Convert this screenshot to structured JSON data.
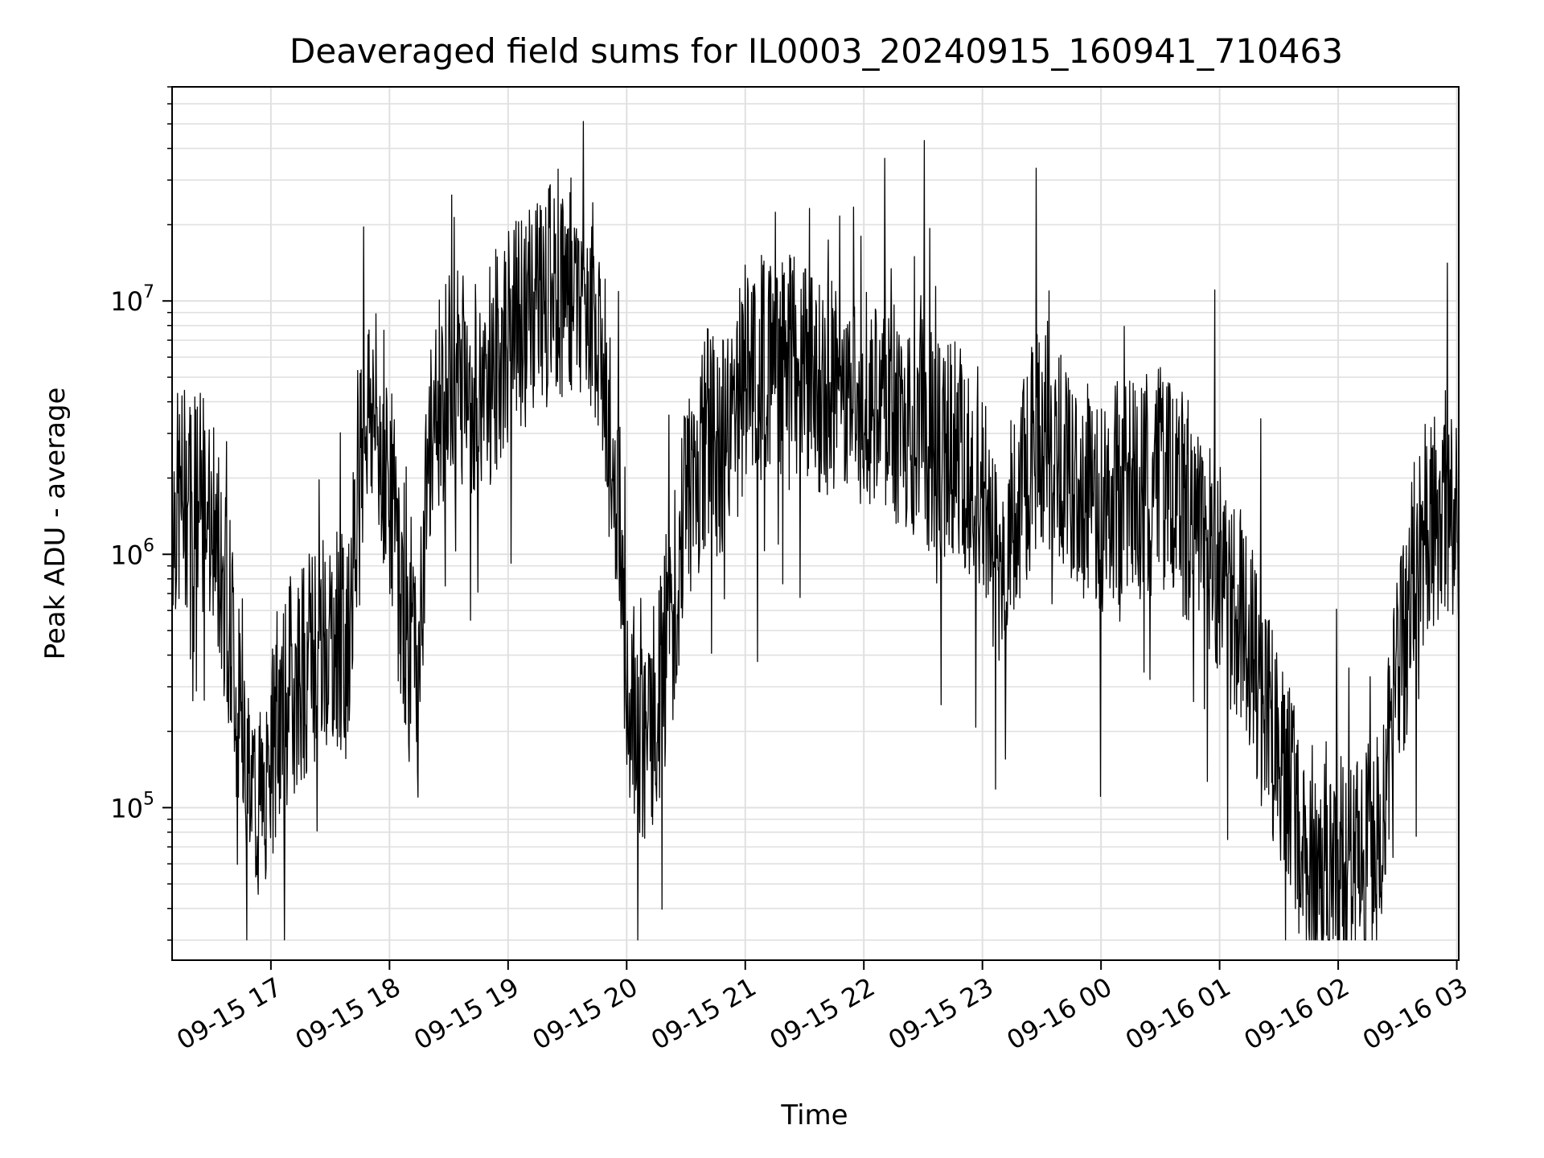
{
  "chart_data": {
    "type": "line",
    "title": "Deaveraged field sums for IL0003_20240915_160941_710463",
    "xlabel": "Time",
    "ylabel": "Peak ADU - average",
    "yscale": "log",
    "grid": true,
    "line_color": "#000000",
    "grid_color": "#e0e0e0",
    "xlim": [
      "2024-09-15 16:10",
      "2024-09-16 03:01"
    ],
    "ylim": [
      25000,
      70000000
    ],
    "x_ticks": [
      {
        "value": "2024-09-15 17:00",
        "label": "09-15 17"
      },
      {
        "value": "2024-09-15 18:00",
        "label": "09-15 18"
      },
      {
        "value": "2024-09-15 19:00",
        "label": "09-15 19"
      },
      {
        "value": "2024-09-15 20:00",
        "label": "09-15 20"
      },
      {
        "value": "2024-09-15 21:00",
        "label": "09-15 21"
      },
      {
        "value": "2024-09-15 22:00",
        "label": "09-15 22"
      },
      {
        "value": "2024-09-15 23:00",
        "label": "09-15 23"
      },
      {
        "value": "2024-09-16 00:00",
        "label": "09-16 00"
      },
      {
        "value": "2024-09-16 01:00",
        "label": "09-16 01"
      },
      {
        "value": "2024-09-16 02:00",
        "label": "09-16 02"
      },
      {
        "value": "2024-09-16 03:00",
        "label": "09-16 03"
      }
    ],
    "y_ticks": [
      {
        "value": 100000,
        "base": "10",
        "exp": "5"
      },
      {
        "value": 1000000,
        "base": "10",
        "exp": "6"
      },
      {
        "value": 10000000,
        "base": "10",
        "exp": "7"
      }
    ],
    "series": [
      {
        "x": [
          "2024-09-15 16:10",
          "2024-09-15 16:20",
          "2024-09-15 16:30",
          "2024-09-15 16:35",
          "2024-09-15 16:40",
          "2024-09-15 16:45",
          "2024-09-15 16:50",
          "2024-09-15 16:55",
          "2024-09-15 17:00",
          "2024-09-15 17:10",
          "2024-09-15 17:20",
          "2024-09-15 17:30",
          "2024-09-15 17:40",
          "2024-09-15 17:45",
          "2024-09-15 17:50",
          "2024-09-15 18:00",
          "2024-09-15 18:05",
          "2024-09-15 18:10",
          "2024-09-15 18:15",
          "2024-09-15 18:20",
          "2024-09-15 18:30",
          "2024-09-15 18:40",
          "2024-09-15 18:50",
          "2024-09-15 19:00",
          "2024-09-15 19:15",
          "2024-09-15 19:30",
          "2024-09-15 19:45",
          "2024-09-15 19:50",
          "2024-09-15 19:55",
          "2024-09-15 20:00",
          "2024-09-15 20:05",
          "2024-09-15 20:10",
          "2024-09-15 20:15",
          "2024-09-15 20:20",
          "2024-09-15 20:30",
          "2024-09-15 20:40",
          "2024-09-15 20:50",
          "2024-09-15 21:00",
          "2024-09-15 21:15",
          "2024-09-15 21:30",
          "2024-09-15 21:45",
          "2024-09-15 22:00",
          "2024-09-15 22:15",
          "2024-09-15 22:30",
          "2024-09-15 22:45",
          "2024-09-15 23:00",
          "2024-09-15 23:05",
          "2024-09-15 23:10",
          "2024-09-15 23:15",
          "2024-09-15 23:30",
          "2024-09-15 23:45",
          "2024-09-16 00:00",
          "2024-09-16 00:15",
          "2024-09-16 00:30",
          "2024-09-16 00:45",
          "2024-09-16 01:00",
          "2024-09-16 01:10",
          "2024-09-16 01:20",
          "2024-09-16 01:30",
          "2024-09-16 01:40",
          "2024-09-16 01:50",
          "2024-09-16 02:00",
          "2024-09-16 02:10",
          "2024-09-16 02:20",
          "2024-09-16 02:30",
          "2024-09-16 02:40",
          "2024-09-16 02:50",
          "2024-09-16 03:00"
        ],
        "y": [
          1500000,
          1800000,
          1300000,
          900000,
          500000,
          200000,
          120000,
          100000,
          150000,
          300000,
          400000,
          500000,
          400000,
          3500000,
          4000000,
          2000000,
          800000,
          400000,
          300000,
          3000000,
          5000000,
          4500000,
          5000000,
          7000000,
          10000000,
          12000000,
          9000000,
          4000000,
          1500000,
          300000,
          200000,
          180000,
          250000,
          400000,
          1500000,
          3000000,
          2500000,
          5000000,
          6000000,
          5000000,
          4500000,
          4000000,
          3500000,
          3000000,
          2500000,
          2000000,
          1000000,
          800000,
          1500000,
          3000000,
          2000000,
          1500000,
          1800000,
          2000000,
          1500000,
          800000,
          600000,
          300000,
          150000,
          80000,
          60000,
          55000,
          55000,
          70000,
          300000,
          1000000,
          1500000,
          1200000
        ]
      }
    ]
  }
}
